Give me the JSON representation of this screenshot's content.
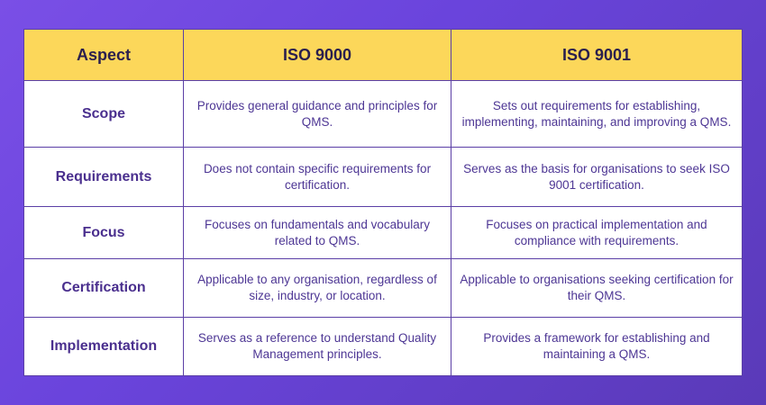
{
  "table": {
    "headers": [
      "Aspect",
      "ISO 9000",
      "ISO 9001"
    ],
    "rows": [
      {
        "aspect": "Scope",
        "iso9000": "Provides general guidance and principles for QMS.",
        "iso9001": "Sets out requirements for establishing, implementing, maintaining, and improving a QMS."
      },
      {
        "aspect": "Requirements",
        "iso9000": "Does not contain specific requirements for certification.",
        "iso9001": "Serves as the basis for organisations to seek ISO 9001 certification."
      },
      {
        "aspect": "Focus",
        "iso9000": "Focuses on fundamentals and vocabulary related to QMS.",
        "iso9001": "Focuses on practical implementation and compliance with requirements."
      },
      {
        "aspect": "Certification",
        "iso9000": "Applicable to any organisation, regardless of size, industry, or location.",
        "iso9001": "Applicable to organisations seeking certification for their QMS."
      },
      {
        "aspect": "Implementation",
        "iso9000": "Serves as a reference to understand Quality Management principles.",
        "iso9001": "Provides a framework for establishing and maintaining a QMS."
      }
    ]
  },
  "colors": {
    "header_bg": "#fcd75a",
    "border": "#5b3fa6",
    "text": "#4a2f8e",
    "background": "#6a44dc"
  }
}
